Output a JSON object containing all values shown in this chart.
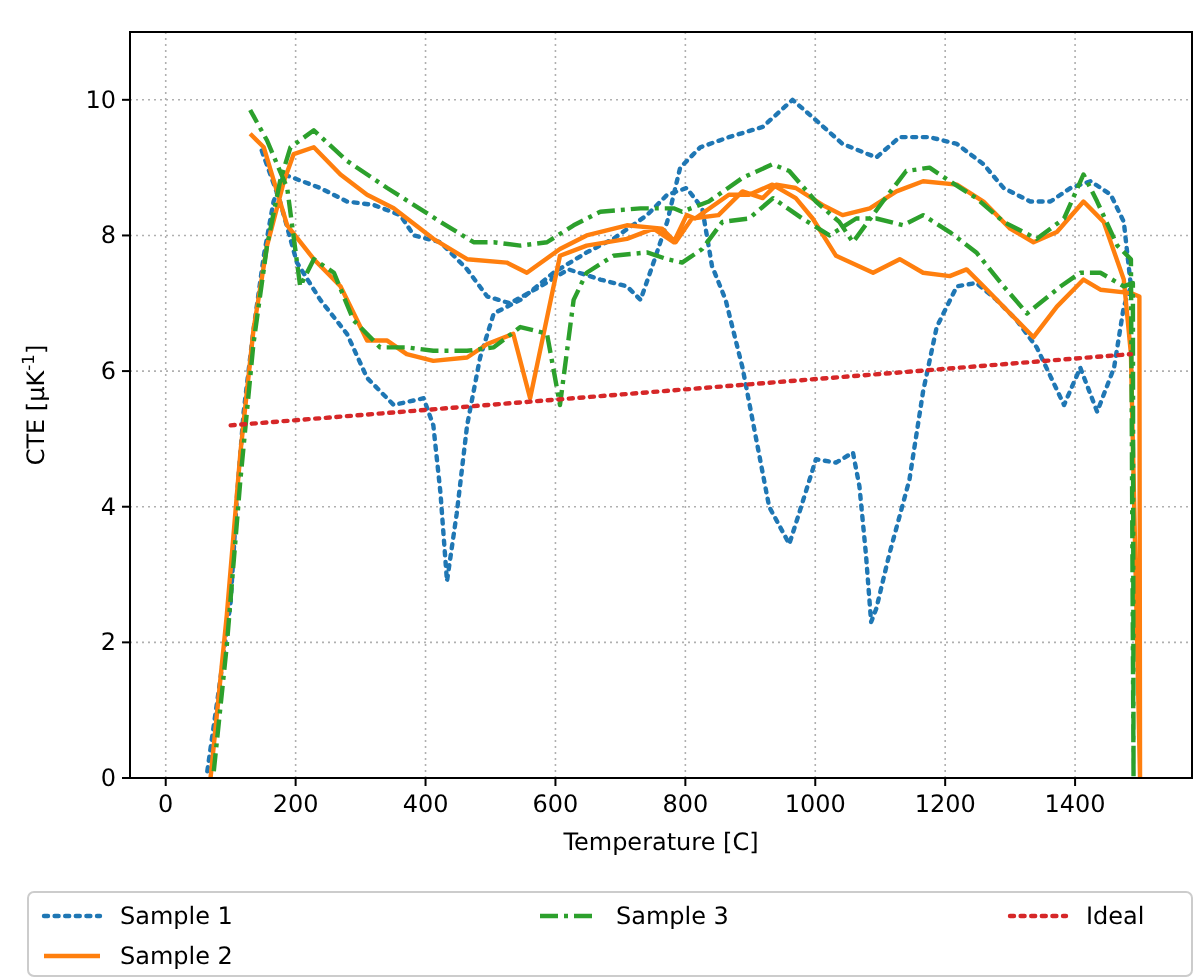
{
  "chart_data": {
    "type": "line",
    "xlabel": "Temperature [C]",
    "ylabel": "CTE [μK$^{-1}$]",
    "xlim": [
      -55,
      1580
    ],
    "xticks": [
      0,
      200,
      400,
      600,
      800,
      1000,
      1200,
      1400
    ],
    "ylim": [
      0,
      11
    ],
    "yticks": [
      0,
      2,
      4,
      6,
      8,
      10
    ],
    "grid": true,
    "legend": "bottom",
    "series": [
      {
        "name": "Sample 1",
        "color": "#1f77b4",
        "line_style": "dotted",
        "x": [
          64,
          84,
          100,
          110,
          120,
          135,
          151,
          166,
          182,
          238,
          279,
          320,
          361,
          382,
          423,
          464,
          495,
          530,
          577,
          620,
          669,
          710,
          731,
          751,
          772,
          792,
          823,
          867,
          919,
          965,
          1001,
          1042,
          1094,
          1130,
          1176,
          1218,
          1259,
          1290,
          1331,
          1362,
          1393,
          1424,
          1455,
          1475,
          1486,
          1475,
          1460,
          1434,
          1408,
          1383,
          1341,
          1310,
          1279,
          1248,
          1218,
          1187,
          1166,
          1145,
          1114,
          1094,
          1086,
          1078,
          1068,
          1058,
          1032,
          1001,
          975,
          960,
          929,
          909,
          888,
          862,
          841,
          826,
          802,
          772,
          741,
          689,
          648,
          597,
          546,
          505,
          484,
          464,
          448,
          433,
          423,
          412,
          397,
          351,
          310,
          279,
          238,
          202,
          176,
          146
        ],
        "values": [
          0.1,
          1.45,
          2.6,
          4.2,
          5.4,
          6.6,
          7.7,
          8.5,
          8.9,
          8.7,
          8.5,
          8.45,
          8.3,
          8.0,
          7.9,
          7.5,
          7.1,
          7.0,
          7.25,
          7.5,
          7.35,
          7.25,
          7.05,
          7.6,
          8.2,
          9.0,
          9.3,
          9.45,
          9.6,
          10.0,
          9.7,
          9.35,
          9.15,
          9.45,
          9.45,
          9.35,
          9.05,
          8.7,
          8.5,
          8.5,
          8.7,
          8.8,
          8.6,
          8.2,
          7.25,
          6.95,
          6.05,
          5.4,
          6.05,
          5.5,
          6.35,
          6.75,
          7.05,
          7.3,
          7.25,
          6.65,
          5.7,
          4.4,
          3.3,
          2.5,
          2.3,
          3.3,
          4.3,
          4.8,
          4.65,
          4.7,
          3.9,
          3.45,
          4.0,
          5.0,
          6.05,
          7.05,
          7.55,
          8.4,
          8.7,
          8.6,
          8.3,
          7.95,
          7.75,
          7.45,
          7.05,
          6.85,
          6.2,
          5.2,
          3.9,
          2.9,
          4.2,
          5.2,
          5.6,
          5.5,
          5.9,
          6.55,
          7.05,
          7.6,
          8.5,
          9.3
        ]
      },
      {
        "name": "Sample 2",
        "color": "#ff7f0e",
        "line_style": "solid",
        "x": [
          69,
          94,
          115,
          135,
          156,
          182,
          197,
          228,
          269,
          310,
          351,
          412,
          464,
          525,
          556,
          607,
          648,
          710,
          764,
          785,
          810,
          851,
          888,
          919,
          940,
          970,
          1011,
          1042,
          1084,
          1125,
          1166,
          1218,
          1259,
          1300,
          1336,
          1372,
          1413,
          1444,
          1475,
          1486,
          1500,
          1499,
          1486,
          1439,
          1413,
          1372,
          1336,
          1300,
          1259,
          1233,
          1207,
          1166,
          1130,
          1089,
          1032,
          996,
          970,
          934,
          898,
          867,
          815,
          802,
          782,
          751,
          710,
          648,
          607,
          561,
          535,
          495,
          464,
          412,
          371,
          341,
          310,
          269,
          228,
          187,
          151,
          130
        ],
        "values": [
          0,
          2.4,
          4.8,
          6.6,
          7.85,
          8.8,
          9.2,
          9.3,
          8.9,
          8.6,
          8.4,
          7.95,
          7.65,
          7.6,
          7.45,
          7.8,
          8.0,
          8.15,
          8.1,
          7.9,
          8.25,
          8.3,
          8.65,
          8.55,
          8.75,
          8.7,
          8.45,
          8.3,
          8.4,
          8.65,
          8.8,
          8.75,
          8.5,
          8.1,
          7.9,
          8.05,
          8.5,
          8.2,
          7.35,
          6.25,
          0,
          7.1,
          7.15,
          7.2,
          7.35,
          6.95,
          6.5,
          6.85,
          7.25,
          7.5,
          7.4,
          7.45,
          7.65,
          7.45,
          7.7,
          8.25,
          8.55,
          8.75,
          8.6,
          8.6,
          8.25,
          8.3,
          7.9,
          8.1,
          7.95,
          7.85,
          7.7,
          5.6,
          6.55,
          6.4,
          6.2,
          6.15,
          6.25,
          6.45,
          6.45,
          7.25,
          7.65,
          8.15,
          9.3,
          9.5
        ]
      },
      {
        "name": "Sample 3",
        "color": "#2ca02c",
        "line_style": "dashdot",
        "x": [
          74,
          94,
          115,
          135,
          156,
          176,
          192,
          228,
          279,
          341,
          423,
          474,
          505,
          546,
          587,
          628,
          669,
          731,
          782,
          795,
          836,
          888,
          934,
          960,
          1001,
          1037,
          1058,
          1104,
          1140,
          1176,
          1207,
          1248,
          1290,
          1341,
          1383,
          1413,
          1434,
          1465,
          1486,
          1490,
          1489,
          1475,
          1439,
          1408,
          1378,
          1326,
          1290,
          1248,
          1207,
          1166,
          1135,
          1094,
          1063,
          1022,
          980,
          935,
          898,
          857,
          826,
          795,
          772,
          741,
          689,
          648,
          628,
          607,
          587,
          546,
          505,
          464,
          412,
          371,
          330,
          289,
          259,
          228,
          207,
          187,
          156,
          130
        ],
        "values": [
          0.1,
          1.95,
          4.4,
          6.4,
          7.85,
          8.8,
          9.3,
          9.55,
          9.1,
          8.7,
          8.2,
          7.9,
          7.9,
          7.85,
          7.9,
          8.15,
          8.35,
          8.4,
          8.4,
          8.35,
          8.5,
          8.85,
          9.05,
          8.95,
          8.5,
          8.2,
          7.9,
          8.5,
          8.95,
          9.0,
          8.8,
          8.55,
          8.2,
          7.95,
          8.25,
          8.9,
          8.5,
          7.85,
          7.65,
          0,
          7.3,
          7.25,
          7.45,
          7.45,
          7.25,
          6.85,
          7.25,
          7.75,
          8.05,
          8.3,
          8.15,
          8.25,
          8.25,
          8.0,
          8.25,
          8.55,
          8.25,
          8.2,
          7.8,
          7.6,
          7.65,
          7.75,
          7.7,
          7.45,
          7.05,
          5.5,
          6.55,
          6.65,
          6.35,
          6.3,
          6.3,
          6.35,
          6.35,
          6.75,
          7.45,
          7.65,
          7.25,
          8.7,
          9.4,
          9.85
        ]
      },
      {
        "name": "Ideal",
        "color": "#d62728",
        "line_style": "dotted",
        "x": [
          100,
          1486
        ],
        "values": [
          5.2,
          6.25
        ]
      }
    ]
  }
}
